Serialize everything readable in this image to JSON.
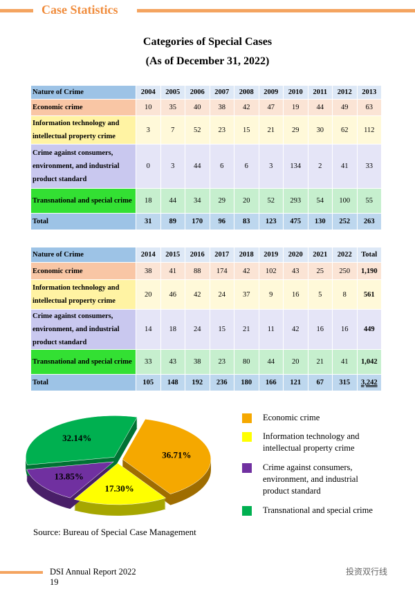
{
  "header": {
    "title": "Case Statistics"
  },
  "document_title": [
    "Categories of Special Cases",
    "(As of December 31, 2022)"
  ],
  "tables": [
    {
      "header": [
        "Nature of Crime",
        "2004",
        "2005",
        "2006",
        "2007",
        "2008",
        "2009",
        "2010",
        "2011",
        "2012",
        "2013"
      ],
      "rows": [
        {
          "label": "Economic crime",
          "values": [
            "10",
            "35",
            "40",
            "38",
            "42",
            "47",
            "19",
            "44",
            "49",
            "63"
          ]
        },
        {
          "label": "Information technology and intellectual property crime",
          "values": [
            "3",
            "7",
            "52",
            "23",
            "15",
            "21",
            "29",
            "30",
            "62",
            "112"
          ]
        },
        {
          "label": "Crime against consumers, environment, and industrial product standard",
          "values": [
            "0",
            "3",
            "44",
            "6",
            "6",
            "3",
            "134",
            "2",
            "41",
            "33"
          ]
        },
        {
          "label": "Transnational and special crime",
          "values": [
            "18",
            "44",
            "34",
            "29",
            "20",
            "52",
            "293",
            "54",
            "100",
            "55"
          ]
        },
        {
          "label": "Total",
          "values": [
            "31",
            "89",
            "170",
            "96",
            "83",
            "123",
            "475",
            "130",
            "252",
            "263"
          ]
        }
      ]
    },
    {
      "header": [
        "Nature of Crime",
        "2014",
        "2015",
        "2016",
        "2017",
        "2018",
        "2019",
        "2020",
        "2021",
        "2022",
        "Total"
      ],
      "rows": [
        {
          "label": "Economic crime",
          "values": [
            "38",
            "41",
            "88",
            "174",
            "42",
            "102",
            "43",
            "25",
            "250",
            "1,190"
          ]
        },
        {
          "label": "Information technology and intellectual property crime",
          "values": [
            "20",
            "46",
            "42",
            "24",
            "37",
            "9",
            "16",
            "5",
            "8",
            "561"
          ]
        },
        {
          "label": "Crime against consumers, environment, and industrial product standard",
          "values": [
            "14",
            "18",
            "24",
            "15",
            "21",
            "11",
            "42",
            "16",
            "16",
            "449"
          ]
        },
        {
          "label": "Transnational and special crime",
          "values": [
            "33",
            "43",
            "38",
            "23",
            "80",
            "44",
            "20",
            "21",
            "41",
            "1,042"
          ]
        },
        {
          "label": "Total",
          "values": [
            "105",
            "148",
            "192",
            "236",
            "180",
            "166",
            "121",
            "67",
            "315",
            "3,242"
          ]
        }
      ]
    }
  ],
  "chart_data": {
    "type": "pie",
    "categories": [
      "Economic crime",
      "Information technology and intellectual property crime",
      "Crime against consumers, environment, and industrial product standard",
      "Transnational and special crime"
    ],
    "values": [
      36.71,
      17.3,
      13.85,
      32.14
    ],
    "value_labels": [
      "36.71%",
      "17.30%",
      "13.85%",
      "32.14%"
    ],
    "colors": [
      "#f5a800",
      "#ffff00",
      "#7030a0",
      "#00b050"
    ]
  },
  "source": "Source: Bureau of Special Case Management",
  "footer": {
    "report": "DSI Annual Report 2022",
    "page": "19",
    "watermark": "投资双行线"
  }
}
